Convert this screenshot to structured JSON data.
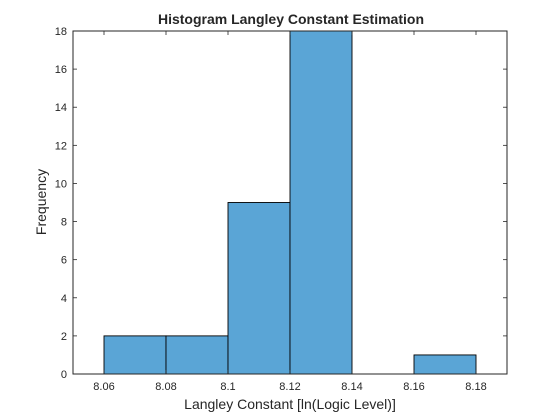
{
  "chart_data": {
    "type": "bar",
    "histogram": true,
    "title": "Histogram Langley Constant Estimation",
    "xlabel": "Langley Constant [ln(Logic Level)]",
    "ylabel": "Frequency",
    "bin_edges": [
      8.06,
      8.08,
      8.1,
      8.12,
      8.14,
      8.16,
      8.18
    ],
    "values": [
      2,
      2,
      9,
      18,
      0,
      1
    ],
    "xlim": [
      8.05,
      8.19
    ],
    "ylim": [
      0,
      18
    ],
    "xticks": [
      "8.06",
      "8.08",
      "8.1",
      "8.12",
      "8.14",
      "8.16",
      "8.18"
    ],
    "yticks": [
      "0",
      "2",
      "4",
      "6",
      "8",
      "10",
      "12",
      "14",
      "16",
      "18"
    ],
    "grid": false,
    "legend": "none",
    "bar_color": "#5aa5d6",
    "edge_color": "#000000"
  }
}
